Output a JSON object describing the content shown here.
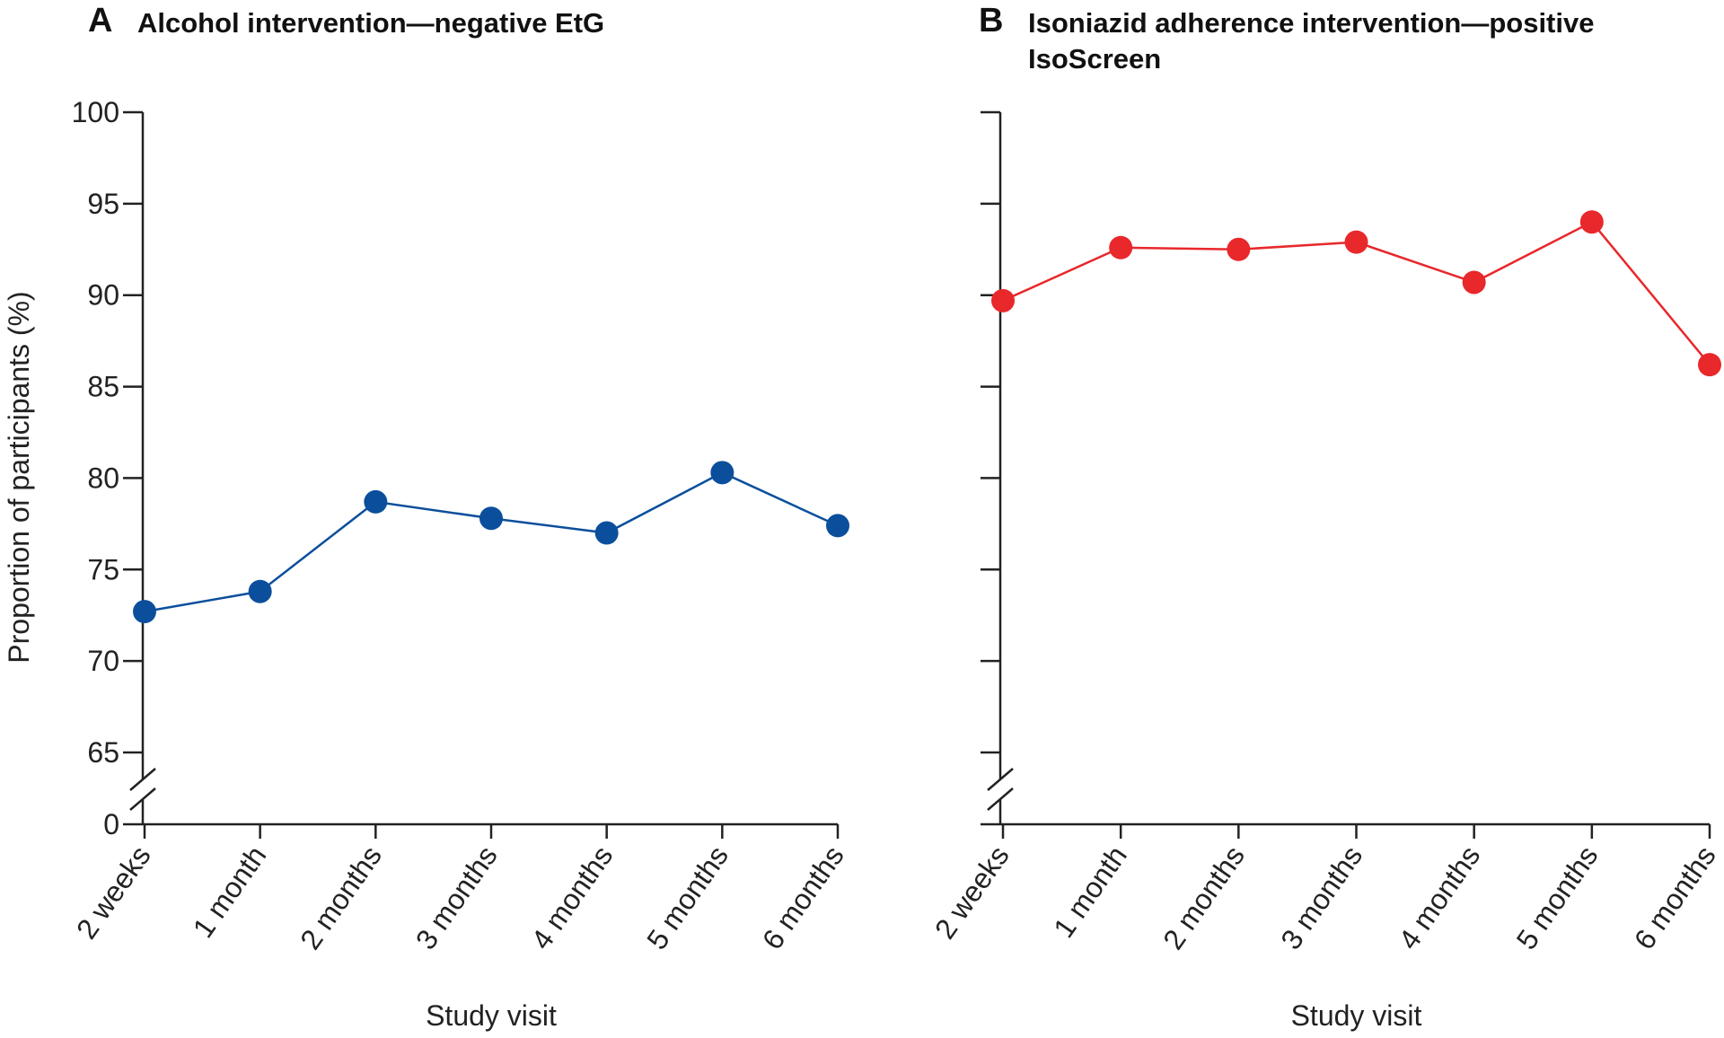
{
  "chart_data": [
    {
      "type": "line",
      "label": "A",
      "title": "Alcohol intervention—negative EtG",
      "y_label": "Proportion of participants (%)",
      "x_label": "Study visit",
      "categories": [
        "2 weeks",
        "1 month",
        "2 months",
        "3 months",
        "4 months",
        "5 months",
        "6 months"
      ],
      "series": [
        {
          "name": "Negative EtG",
          "color": "#0b4f9c",
          "values": [
            72.7,
            73.8,
            78.7,
            77.8,
            77.0,
            80.3,
            77.4
          ]
        }
      ],
      "ylim": [
        0,
        100
      ],
      "yticks": [
        0,
        65,
        70,
        75,
        80,
        85,
        90,
        95,
        100
      ],
      "axis_break": [
        0,
        65
      ],
      "tick_labels": true
    },
    {
      "type": "line",
      "label": "B",
      "title": "Isoniazid adherence intervention—positive IsoScreen",
      "x_label": "Study visit",
      "categories": [
        "2 weeks",
        "1 month",
        "2 months",
        "3 months",
        "4 months",
        "5 months",
        "6 months"
      ],
      "series": [
        {
          "name": "Positive IsoScreen",
          "color": "#e8282b",
          "values": [
            89.7,
            92.6,
            92.5,
            92.9,
            90.7,
            94.0,
            86.2
          ]
        }
      ],
      "ylim": [
        0,
        100
      ],
      "yticks": [
        0,
        65,
        70,
        75,
        80,
        85,
        90,
        95,
        100
      ],
      "axis_break": [
        0,
        65
      ],
      "tick_labels": false
    }
  ]
}
